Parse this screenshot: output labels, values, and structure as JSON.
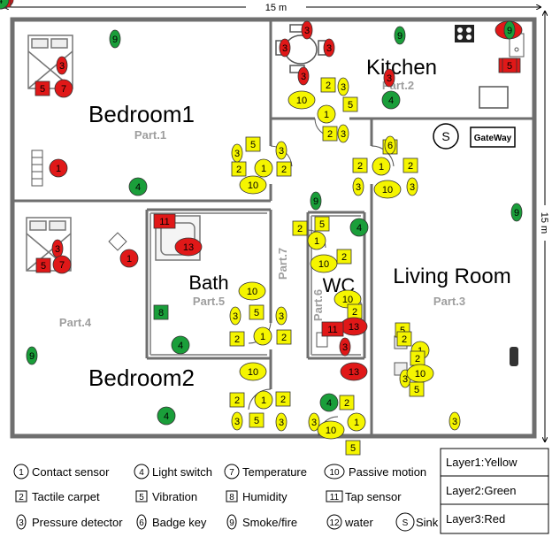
{
  "dimensions": {
    "width_label": "15 m",
    "height_label": "15 m"
  },
  "rooms": {
    "bedroom1": {
      "name": "Bedroom1",
      "part": "Part.1"
    },
    "kitchen": {
      "name": "Kitchen",
      "part": "Part.2"
    },
    "living_room": {
      "name": "Living Room",
      "part": "Part.3"
    },
    "bedroom2": {
      "name": "Bedroom2",
      "part": "Part.4"
    },
    "bath": {
      "name": "Bath",
      "part": "Part.5"
    },
    "wc": {
      "name": "WC",
      "part": "Part.6"
    },
    "corridor": {
      "name": "",
      "part": "Part.7"
    }
  },
  "gateway": {
    "sink_symbol": "S",
    "label": "GateWay"
  },
  "colors": {
    "layer1": "#f5f500",
    "layer2": "#1a9e3a",
    "layer3": "#e01818",
    "wall": "#7a7a7a",
    "part_label": "#9e9e9e"
  },
  "legend": {
    "items": [
      {
        "num": "1",
        "shape": "circle",
        "label": "Contact sensor"
      },
      {
        "num": "4",
        "shape": "circle",
        "label": "Light switch"
      },
      {
        "num": "7",
        "shape": "circle",
        "label": "Temperature"
      },
      {
        "num": "10",
        "shape": "ellipse",
        "label": "Passive motion"
      },
      {
        "num": "2",
        "shape": "square",
        "label": "Tactile carpet"
      },
      {
        "num": "5",
        "shape": "square",
        "label": "Vibration"
      },
      {
        "num": "8",
        "shape": "square",
        "label": "Humidity"
      },
      {
        "num": "11",
        "shape": "rect",
        "label": "Tap sensor"
      },
      {
        "num": "3",
        "shape": "ellipse-v",
        "label": "Pressure detector"
      },
      {
        "num": "6",
        "shape": "ellipse-v",
        "label": "Badge key"
      },
      {
        "num": "9",
        "shape": "ellipse-v",
        "label": "Smoke/fire"
      },
      {
        "num": "12",
        "shape": "circle",
        "label": "water"
      },
      {
        "num": "S",
        "shape": "circle",
        "label": "Sink"
      }
    ],
    "layers": [
      "Layer1:Yellow",
      "Layer2:Green",
      "Layer3:Red"
    ]
  },
  "sensors": [
    {
      "num": "9",
      "shape": "ev",
      "layer": 2
    },
    {
      "num": "3",
      "shape": "ev",
      "layer": 3
    },
    {
      "num": "5",
      "shape": "sq",
      "layer": 3
    },
    {
      "num": "7",
      "shape": "ci",
      "layer": 3
    },
    {
      "num": "1",
      "shape": "ci",
      "layer": 3
    },
    {
      "num": "4",
      "shape": "ci",
      "layer": 2
    },
    {
      "num": "5",
      "shape": "sq",
      "layer": 1
    },
    {
      "num": "3",
      "shape": "ev",
      "layer": 1
    },
    {
      "num": "2",
      "shape": "sq",
      "layer": 1
    },
    {
      "num": "1",
      "shape": "ci",
      "layer": 1
    },
    {
      "num": "2",
      "shape": "sq",
      "layer": 1
    },
    {
      "num": "10",
      "shape": "el",
      "layer": 1
    },
    {
      "num": "3",
      "shape": "ev",
      "layer": 1
    },
    {
      "num": "3",
      "shape": "ev",
      "layer": 3
    },
    {
      "num": "3",
      "shape": "ev",
      "layer": 3
    },
    {
      "num": "3",
      "shape": "ev",
      "layer": 3
    },
    {
      "num": "3",
      "shape": "ev",
      "layer": 3
    },
    {
      "num": "9",
      "shape": "ev",
      "layer": 2
    },
    {
      "num": "13",
      "shape": "el",
      "layer": 3
    },
    {
      "num": "11",
      "shape": "rc",
      "layer": 3
    },
    {
      "num": "2",
      "shape": "sq",
      "layer": 1
    },
    {
      "num": "3",
      "shape": "ev",
      "layer": 1
    },
    {
      "num": "10",
      "shape": "el",
      "layer": 1
    },
    {
      "num": "1",
      "shape": "ci",
      "layer": 1
    },
    {
      "num": "5",
      "shape": "sq",
      "layer": 1
    },
    {
      "num": "2",
      "shape": "sq",
      "layer": 1
    },
    {
      "num": "3",
      "shape": "ev",
      "layer": 1
    },
    {
      "num": "4",
      "shape": "ci",
      "layer": 2
    },
    {
      "num": "5",
      "shape": "sq",
      "layer": 1
    },
    {
      "num": "2",
      "shape": "sq",
      "layer": 1
    },
    {
      "num": "1",
      "shape": "ci",
      "layer": 1
    },
    {
      "num": "2",
      "shape": "sq",
      "layer": 1
    },
    {
      "num": "3",
      "shape": "ev",
      "layer": 1
    },
    {
      "num": "10",
      "shape": "el",
      "layer": 1
    },
    {
      "num": "3",
      "shape": "ev",
      "layer": 1
    },
    {
      "num": "9",
      "shape": "ev",
      "layer": 2
    },
    {
      "num": "3",
      "shape": "ev",
      "layer": 3
    },
    {
      "num": "5",
      "shape": "sq",
      "layer": 3
    },
    {
      "num": "7",
      "shape": "ci",
      "layer": 3
    },
    {
      "num": "1",
      "shape": "ci",
      "layer": 3
    },
    {
      "num": "11",
      "shape": "rc",
      "layer": 3
    },
    {
      "num": "13",
      "shape": "el",
      "layer": 3
    },
    {
      "num": "8",
      "shape": "sq",
      "layer": 2
    },
    {
      "num": "10",
      "shape": "el",
      "layer": 1
    },
    {
      "num": "3",
      "shape": "ev",
      "layer": 1
    },
    {
      "num": "5",
      "shape": "sq",
      "layer": 1
    },
    {
      "num": "3",
      "shape": "ev",
      "layer": 1
    },
    {
      "num": "2",
      "shape": "sq",
      "layer": 1
    },
    {
      "num": "1",
      "shape": "ci",
      "layer": 1
    },
    {
      "num": "2",
      "shape": "sq",
      "layer": 1
    },
    {
      "num": "4",
      "shape": "ci",
      "layer": 2
    },
    {
      "num": "9",
      "shape": "ev",
      "layer": 2
    },
    {
      "num": "10",
      "shape": "el",
      "layer": 1
    },
    {
      "num": "2",
      "shape": "sq",
      "layer": 1
    },
    {
      "num": "1",
      "shape": "ci",
      "layer": 1
    },
    {
      "num": "2",
      "shape": "sq",
      "layer": 1
    },
    {
      "num": "3",
      "shape": "ev",
      "layer": 1
    },
    {
      "num": "5",
      "shape": "sq",
      "layer": 1
    },
    {
      "num": "3",
      "shape": "ev",
      "layer": 1
    },
    {
      "num": "4",
      "shape": "ci",
      "layer": 2
    },
    {
      "num": "9",
      "shape": "ev",
      "layer": 2
    },
    {
      "num": "5",
      "shape": "sq",
      "layer": 1
    },
    {
      "num": "2",
      "shape": "sq",
      "layer": 1
    },
    {
      "num": "1",
      "shape": "ci",
      "layer": 1
    },
    {
      "num": "10",
      "shape": "el",
      "layer": 1
    },
    {
      "num": "2",
      "shape": "sq",
      "layer": 1
    },
    {
      "num": "4",
      "shape": "ci",
      "layer": 2
    },
    {
      "num": "10",
      "shape": "el",
      "layer": 1
    },
    {
      "num": "2",
      "shape": "sq",
      "layer": 1
    },
    {
      "num": "13",
      "shape": "el",
      "layer": 3
    },
    {
      "num": "11",
      "shape": "rc",
      "layer": 3
    },
    {
      "num": "3",
      "shape": "ev",
      "layer": 3
    },
    {
      "num": "13",
      "shape": "el",
      "layer": 3
    },
    {
      "num": "4",
      "shape": "ci",
      "layer": 2
    },
    {
      "num": "2",
      "shape": "sq",
      "layer": 1
    },
    {
      "num": "3",
      "shape": "ev",
      "layer": 1
    },
    {
      "num": "10",
      "shape": "el",
      "layer": 1
    },
    {
      "num": "1",
      "shape": "ci",
      "layer": 1
    },
    {
      "num": "5",
      "shape": "sq",
      "layer": 1
    },
    {
      "num": "6",
      "shape": "ev",
      "layer": 1
    },
    {
      "num": "5",
      "shape": "sq",
      "layer": 1
    },
    {
      "num": "2",
      "shape": "sq",
      "layer": 1
    },
    {
      "num": "1",
      "shape": "ci",
      "layer": 1
    },
    {
      "num": "2",
      "shape": "sq",
      "layer": 1
    },
    {
      "num": "3",
      "shape": "ev",
      "layer": 1
    },
    {
      "num": "10",
      "shape": "el",
      "layer": 1
    },
    {
      "num": "5",
      "shape": "sq",
      "layer": 1
    },
    {
      "num": "3",
      "shape": "ev",
      "layer": 1
    },
    {
      "num": "9",
      "shape": "ev",
      "layer": 2
    },
    {
      "num": "5",
      "shape": "sq",
      "layer": 3
    },
    {
      "num": "3",
      "shape": "ev",
      "layer": 3
    },
    {
      "num": "7",
      "shape": "ci",
      "layer": 3
    },
    {
      "num": "5",
      "shape": "sq",
      "layer": 3
    },
    {
      "num": "3",
      "shape": "ev",
      "layer": 3
    },
    {
      "num": "7",
      "shape": "ci",
      "layer": 3
    },
    {
      "num": "4",
      "shape": "ci",
      "layer": 2
    },
    {
      "num": "13",
      "shape": "el",
      "layer": 3
    },
    {
      "num": "11",
      "shape": "rc",
      "layer": 3
    },
    {
      "num": "4",
      "shape": "ci",
      "layer": 2
    }
  ]
}
